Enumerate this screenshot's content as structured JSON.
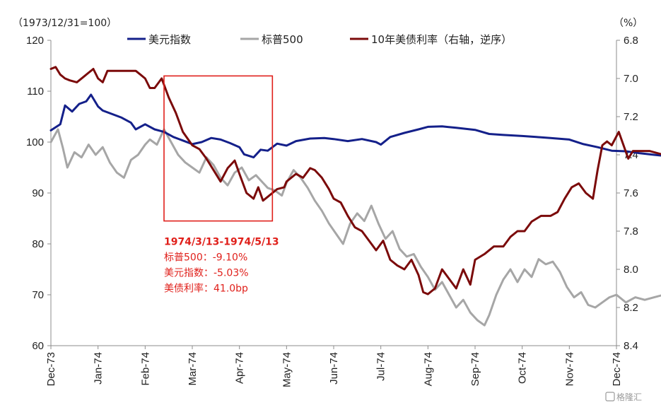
{
  "chart_data": {
    "type": "line",
    "left_axis_title": "（1973/12/31=100）",
    "right_axis_title": "（%）",
    "left_ylim": [
      60,
      120
    ],
    "left_ticks": [
      "120",
      "110",
      "100",
      "90",
      "80",
      "70",
      "60"
    ],
    "right_ylim": [
      6.8,
      8.4
    ],
    "right_reversed": true,
    "right_ticks": [
      "6.8",
      "7.0",
      "7.2",
      "7.4",
      "7.6",
      "7.8",
      "8.0",
      "8.2",
      "8.4"
    ],
    "categories": [
      "Dec-73",
      "Jan-74",
      "Feb-74",
      "Mar-74",
      "Apr-74",
      "May-74",
      "Jun-74",
      "Jul-74",
      "Aug-74",
      "Sep-74",
      "Oct-74",
      "Nov-74",
      "Dec-74"
    ],
    "series": [
      {
        "name": "美元指数",
        "axis": "left",
        "color": "#14208a",
        "values": [
          [
            0.0,
            102.3
          ],
          [
            0.2,
            103.5
          ],
          [
            0.3,
            107.2
          ],
          [
            0.45,
            106.0
          ],
          [
            0.6,
            107.5
          ],
          [
            0.75,
            108.0
          ],
          [
            0.85,
            109.3
          ],
          [
            1.0,
            107.0
          ],
          [
            1.1,
            106.2
          ],
          [
            1.3,
            105.5
          ],
          [
            1.5,
            104.8
          ],
          [
            1.7,
            103.8
          ],
          [
            1.8,
            102.5
          ],
          [
            2.0,
            103.5
          ],
          [
            2.2,
            102.5
          ],
          [
            2.4,
            102.0
          ],
          [
            2.6,
            101.0
          ],
          [
            2.8,
            100.3
          ],
          [
            3.0,
            99.6
          ],
          [
            3.2,
            100.0
          ],
          [
            3.4,
            100.8
          ],
          [
            3.6,
            100.5
          ],
          [
            3.8,
            99.8
          ],
          [
            4.0,
            99.0
          ],
          [
            4.1,
            97.6
          ],
          [
            4.3,
            97.0
          ],
          [
            4.45,
            98.5
          ],
          [
            4.6,
            98.3
          ],
          [
            4.8,
            99.7
          ],
          [
            5.0,
            99.3
          ],
          [
            5.2,
            100.2
          ],
          [
            5.5,
            100.7
          ],
          [
            5.8,
            100.8
          ],
          [
            6.0,
            100.6
          ],
          [
            6.3,
            100.2
          ],
          [
            6.6,
            100.6
          ],
          [
            6.9,
            100.0
          ],
          [
            7.0,
            99.5
          ],
          [
            7.2,
            101.0
          ],
          [
            7.5,
            101.8
          ],
          [
            7.8,
            102.5
          ],
          [
            8.0,
            103.0
          ],
          [
            8.3,
            103.1
          ],
          [
            8.6,
            102.8
          ],
          [
            9.0,
            102.4
          ],
          [
            9.3,
            101.6
          ],
          [
            9.6,
            101.4
          ],
          [
            10.0,
            101.2
          ],
          [
            10.3,
            101.0
          ],
          [
            10.6,
            100.8
          ],
          [
            11.0,
            100.5
          ],
          [
            11.3,
            99.6
          ],
          [
            11.6,
            99.0
          ],
          [
            11.9,
            98.3
          ],
          [
            12.2,
            98.2
          ],
          [
            12.5,
            97.8
          ],
          [
            12.8,
            97.5
          ],
          [
            13.0,
            97.3
          ]
        ]
      },
      {
        "name": "标普500",
        "axis": "left",
        "color": "#a6a6a6",
        "values": [
          [
            0.0,
            100.0
          ],
          [
            0.15,
            102.5
          ],
          [
            0.25,
            99.0
          ],
          [
            0.35,
            95.0
          ],
          [
            0.5,
            98.0
          ],
          [
            0.65,
            97.0
          ],
          [
            0.8,
            99.5
          ],
          [
            0.95,
            97.5
          ],
          [
            1.1,
            99.0
          ],
          [
            1.25,
            96.0
          ],
          [
            1.4,
            94.0
          ],
          [
            1.55,
            93.0
          ],
          [
            1.7,
            96.5
          ],
          [
            1.85,
            97.5
          ],
          [
            2.0,
            99.5
          ],
          [
            2.1,
            100.5
          ],
          [
            2.25,
            99.5
          ],
          [
            2.4,
            102.5
          ],
          [
            2.55,
            100.0
          ],
          [
            2.7,
            97.5
          ],
          [
            2.85,
            96.0
          ],
          [
            3.0,
            95.0
          ],
          [
            3.15,
            94.0
          ],
          [
            3.3,
            97.0
          ],
          [
            3.45,
            95.5
          ],
          [
            3.6,
            93.0
          ],
          [
            3.75,
            91.5
          ],
          [
            3.9,
            94.0
          ],
          [
            4.05,
            95.0
          ],
          [
            4.2,
            92.5
          ],
          [
            4.35,
            93.5
          ],
          [
            4.5,
            92.0
          ],
          [
            4.6,
            91.0
          ],
          [
            4.75,
            90.5
          ],
          [
            4.9,
            89.5
          ],
          [
            5.0,
            92.0
          ],
          [
            5.15,
            94.5
          ],
          [
            5.3,
            93.0
          ],
          [
            5.45,
            91.0
          ],
          [
            5.6,
            88.5
          ],
          [
            5.75,
            86.5
          ],
          [
            5.9,
            84.0
          ],
          [
            6.05,
            82.0
          ],
          [
            6.2,
            80.0
          ],
          [
            6.35,
            84.0
          ],
          [
            6.5,
            86.0
          ],
          [
            6.65,
            84.5
          ],
          [
            6.8,
            87.5
          ],
          [
            6.95,
            84.0
          ],
          [
            7.1,
            81.0
          ],
          [
            7.25,
            82.5
          ],
          [
            7.4,
            79.0
          ],
          [
            7.55,
            77.5
          ],
          [
            7.7,
            78.0
          ],
          [
            7.85,
            75.5
          ],
          [
            8.0,
            73.5
          ],
          [
            8.15,
            71.0
          ],
          [
            8.3,
            72.5
          ],
          [
            8.45,
            70.0
          ],
          [
            8.6,
            67.5
          ],
          [
            8.75,
            69.0
          ],
          [
            8.9,
            66.5
          ],
          [
            9.05,
            65.0
          ],
          [
            9.2,
            64.0
          ],
          [
            9.3,
            66.0
          ],
          [
            9.45,
            70.0
          ],
          [
            9.6,
            73.0
          ],
          [
            9.75,
            75.0
          ],
          [
            9.9,
            72.5
          ],
          [
            10.05,
            75.0
          ],
          [
            10.2,
            73.5
          ],
          [
            10.35,
            77.0
          ],
          [
            10.5,
            76.0
          ],
          [
            10.65,
            76.5
          ],
          [
            10.8,
            74.5
          ],
          [
            10.95,
            71.5
          ],
          [
            11.1,
            69.5
          ],
          [
            11.25,
            70.5
          ],
          [
            11.4,
            68.0
          ],
          [
            11.55,
            67.5
          ],
          [
            11.7,
            68.5
          ],
          [
            11.85,
            69.5
          ],
          [
            12.0,
            70.0
          ],
          [
            12.2,
            68.5
          ],
          [
            12.4,
            69.5
          ],
          [
            12.6,
            69.0
          ],
          [
            12.8,
            69.5
          ],
          [
            13.0,
            70.0
          ]
        ]
      },
      {
        "name": "10年美债利率（右轴，逆序）",
        "axis": "right",
        "color": "#7b0a0a",
        "values": [
          [
            0.0,
            6.95
          ],
          [
            0.1,
            6.94
          ],
          [
            0.2,
            6.98
          ],
          [
            0.3,
            7.0
          ],
          [
            0.4,
            7.01
          ],
          [
            0.55,
            7.02
          ],
          [
            0.7,
            6.99
          ],
          [
            0.8,
            6.97
          ],
          [
            0.9,
            6.95
          ],
          [
            1.0,
            7.0
          ],
          [
            1.1,
            7.02
          ],
          [
            1.2,
            6.96
          ],
          [
            1.3,
            6.96
          ],
          [
            1.4,
            6.96
          ],
          [
            1.6,
            6.96
          ],
          [
            1.8,
            6.96
          ],
          [
            1.9,
            6.98
          ],
          [
            2.0,
            7.0
          ],
          [
            2.1,
            7.05
          ],
          [
            2.2,
            7.05
          ],
          [
            2.35,
            7.0
          ],
          [
            2.5,
            7.1
          ],
          [
            2.65,
            7.18
          ],
          [
            2.8,
            7.28
          ],
          [
            3.0,
            7.35
          ],
          [
            3.15,
            7.37
          ],
          [
            3.3,
            7.42
          ],
          [
            3.45,
            7.48
          ],
          [
            3.6,
            7.54
          ],
          [
            3.75,
            7.47
          ],
          [
            3.9,
            7.43
          ],
          [
            4.0,
            7.5
          ],
          [
            4.15,
            7.6
          ],
          [
            4.3,
            7.63
          ],
          [
            4.4,
            7.57
          ],
          [
            4.5,
            7.64
          ],
          [
            4.6,
            7.62
          ],
          [
            4.7,
            7.6
          ],
          [
            4.8,
            7.58
          ],
          [
            4.95,
            7.57
          ],
          [
            5.0,
            7.54
          ],
          [
            5.2,
            7.5
          ],
          [
            5.35,
            7.52
          ],
          [
            5.5,
            7.47
          ],
          [
            5.6,
            7.48
          ],
          [
            5.75,
            7.52
          ],
          [
            5.9,
            7.58
          ],
          [
            6.0,
            7.63
          ],
          [
            6.15,
            7.65
          ],
          [
            6.3,
            7.72
          ],
          [
            6.45,
            7.78
          ],
          [
            6.6,
            7.8
          ],
          [
            6.75,
            7.85
          ],
          [
            6.9,
            7.9
          ],
          [
            7.05,
            7.85
          ],
          [
            7.2,
            7.95
          ],
          [
            7.35,
            7.98
          ],
          [
            7.5,
            8.0
          ],
          [
            7.65,
            7.95
          ],
          [
            7.8,
            8.03
          ],
          [
            7.9,
            8.12
          ],
          [
            8.0,
            8.13
          ],
          [
            8.15,
            8.1
          ],
          [
            8.3,
            8.0
          ],
          [
            8.45,
            8.05
          ],
          [
            8.6,
            8.1
          ],
          [
            8.75,
            8.0
          ],
          [
            8.9,
            8.08
          ],
          [
            9.0,
            7.95
          ],
          [
            9.2,
            7.92
          ],
          [
            9.4,
            7.88
          ],
          [
            9.6,
            7.88
          ],
          [
            9.75,
            7.83
          ],
          [
            9.9,
            7.8
          ],
          [
            10.05,
            7.8
          ],
          [
            10.2,
            7.75
          ],
          [
            10.4,
            7.72
          ],
          [
            10.6,
            7.72
          ],
          [
            10.75,
            7.7
          ],
          [
            10.9,
            7.63
          ],
          [
            11.05,
            7.57
          ],
          [
            11.2,
            7.55
          ],
          [
            11.35,
            7.6
          ],
          [
            11.5,
            7.63
          ],
          [
            11.6,
            7.48
          ],
          [
            11.7,
            7.35
          ],
          [
            11.8,
            7.33
          ],
          [
            11.9,
            7.35
          ],
          [
            12.05,
            7.28
          ],
          [
            12.15,
            7.35
          ],
          [
            12.25,
            7.42
          ],
          [
            12.35,
            7.38
          ],
          [
            12.5,
            7.38
          ],
          [
            12.7,
            7.38
          ],
          [
            12.85,
            7.39
          ],
          [
            13.0,
            7.4
          ]
        ]
      }
    ],
    "annotation": {
      "period": "1974/3/13-1974/5/13",
      "lines": [
        "标普500：-9.10%",
        "美元指数：-5.03%",
        "美债利率：41.0bp"
      ],
      "color": "#e0201b"
    },
    "legend_position": "top"
  },
  "watermark": "格隆汇"
}
